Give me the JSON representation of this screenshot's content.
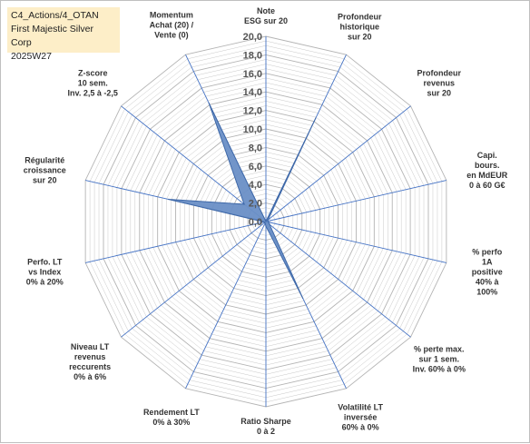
{
  "title_box": {
    "line1": "C4_Actions/4_OTAN",
    "line2": "First Majestic Silver Corp",
    "line3": "2025W27"
  },
  "chart_data": {
    "type": "radar",
    "rmax": 20,
    "ticks": [
      "0,0",
      "2,0",
      "4,0",
      "6,0",
      "8,0",
      "10,0",
      "12,0",
      "14,0",
      "16,0",
      "18,0",
      "20,0"
    ],
    "axes": [
      "Note\nESG sur 20",
      "Profondeur\nhistorique\nsur 20",
      "Profondeur\nrevenus\nsur 20",
      "Capi. bours.\nen MdEUR\n0 à 60 G€",
      "% perfo 1A\npositive\n40% à 100%",
      "% perte max.\nsur 1 sem.\nInv. 60% à 0%",
      "Volatilité LT\ninversée\n60% à 0%",
      "Ratio Sharpe\n0 à 2",
      "Rendement LT\n0% à 30%",
      "Niveau LT\nrevenus\nreccurents\n0% à 6%",
      "Perfo. LT\nvs Index\n0% à 20%",
      "Régularité\ncroissance\nsur 20",
      "Z-score\n10 sem.\nInv. 2,5 à -2,5",
      "Momentum\nAchat (20) /\nVente (0)"
    ],
    "values": [
      0,
      12.4,
      0.3,
      0.2,
      0.3,
      0.5,
      9.2,
      0.5,
      0.2,
      0.2,
      0.2,
      10.8,
      3.0,
      14.2
    ],
    "colors": {
      "fill": "#6a8fc6",
      "stroke": "#3e68a8",
      "spoke": "#4472c4",
      "grid": "#c8c8c8"
    }
  }
}
